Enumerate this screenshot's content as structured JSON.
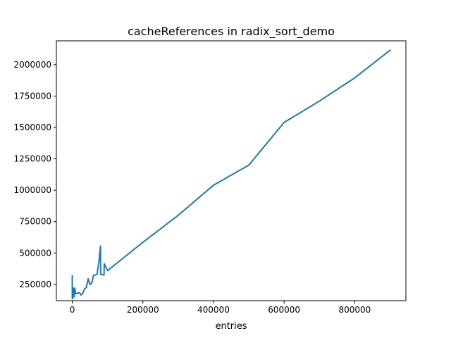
{
  "chart_data": {
    "type": "line",
    "title": "cacheReferences in radix_sort_demo",
    "xlabel": "entries",
    "ylabel": "",
    "xlim": [
      -45000,
      945000
    ],
    "ylim": [
      120000,
      2190000
    ],
    "xticks": [
      0,
      200000,
      400000,
      600000,
      800000
    ],
    "xtick_labels": [
      "0",
      "200000",
      "400000",
      "600000",
      "800000"
    ],
    "yticks": [
      250000,
      500000,
      750000,
      1000000,
      1250000,
      1500000,
      1750000,
      2000000
    ],
    "ytick_labels": [
      "250000",
      "500000",
      "750000",
      "1000000",
      "1250000",
      "1500000",
      "1750000",
      "2000000"
    ],
    "grid": false,
    "series": [
      {
        "color": "#1f77b4",
        "x": [
          0,
          0,
          0,
          0,
          0,
          0,
          200,
          500,
          1000,
          2000,
          3000,
          5000,
          7000,
          10000,
          20000,
          25000,
          30000,
          35000,
          40000,
          45000,
          50000,
          55000,
          60000,
          70000,
          75000,
          80000,
          80500,
          90000,
          90500,
          100000,
          200000,
          300000,
          400000,
          500000,
          600000,
          700000,
          800000,
          900000
        ],
        "y": [
          145000,
          170000,
          200000,
          250000,
          320000,
          160000,
          135000,
          150000,
          170000,
          145000,
          220000,
          150000,
          220000,
          175000,
          185000,
          165000,
          180000,
          215000,
          225000,
          295000,
          250000,
          260000,
          320000,
          330000,
          420000,
          555000,
          330000,
          325000,
          415000,
          360000,
          585000,
          800000,
          1040000,
          1200000,
          1540000,
          1710000,
          1895000,
          2115000
        ]
      }
    ]
  }
}
